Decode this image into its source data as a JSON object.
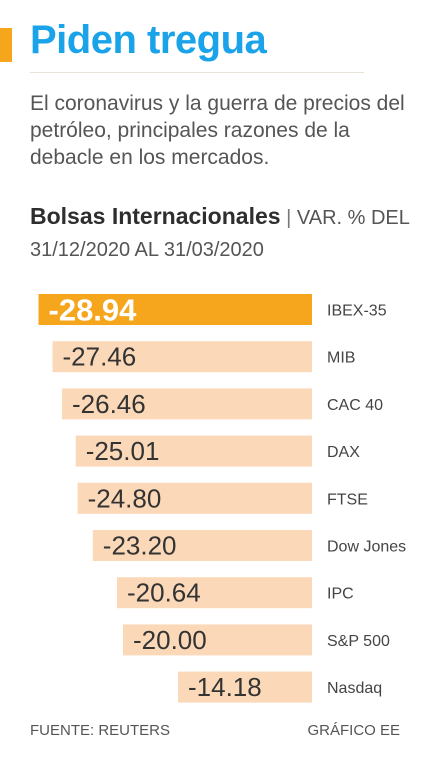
{
  "header": {
    "title": "Piden tregua",
    "subtitle": "El coronavirus y la guerra de precios del petróleo, principales razones de la debacle en los mercados."
  },
  "chart_heading": {
    "bold": "Bolsas Internacionales",
    "separator": "|",
    "detail": "VAR. % DEL 31/12/2020 AL 31/03/2020"
  },
  "colors": {
    "accent": "#f5a61d",
    "bar_light": "#fbd9b8",
    "title_blue": "#1aa3e8",
    "value_text": "#333333",
    "label_text": "#444444"
  },
  "chart_data": {
    "type": "bar",
    "orientation": "horizontal",
    "categories": [
      "IBEX-35",
      "MIB",
      "CAC 40",
      "DAX",
      "FTSE",
      "Dow Jones",
      "IPC",
      "S&P 500",
      "Nasdaq"
    ],
    "values": [
      -28.94,
      -27.46,
      -26.46,
      -25.01,
      -24.8,
      -23.2,
      -20.64,
      -20.0,
      -14.18
    ],
    "value_labels": [
      "-28.94",
      "-27.46",
      "-26.46",
      "-25.01",
      "-24.80",
      "-23.20",
      "-20.64",
      "-20.00",
      "-14.18"
    ],
    "highlight_index": 0,
    "xlim": [
      -30,
      0
    ],
    "grid": false,
    "legend": "none"
  },
  "footer": {
    "source": "FUENTE: REUTERS",
    "credit": "GRÁFICO EE"
  }
}
